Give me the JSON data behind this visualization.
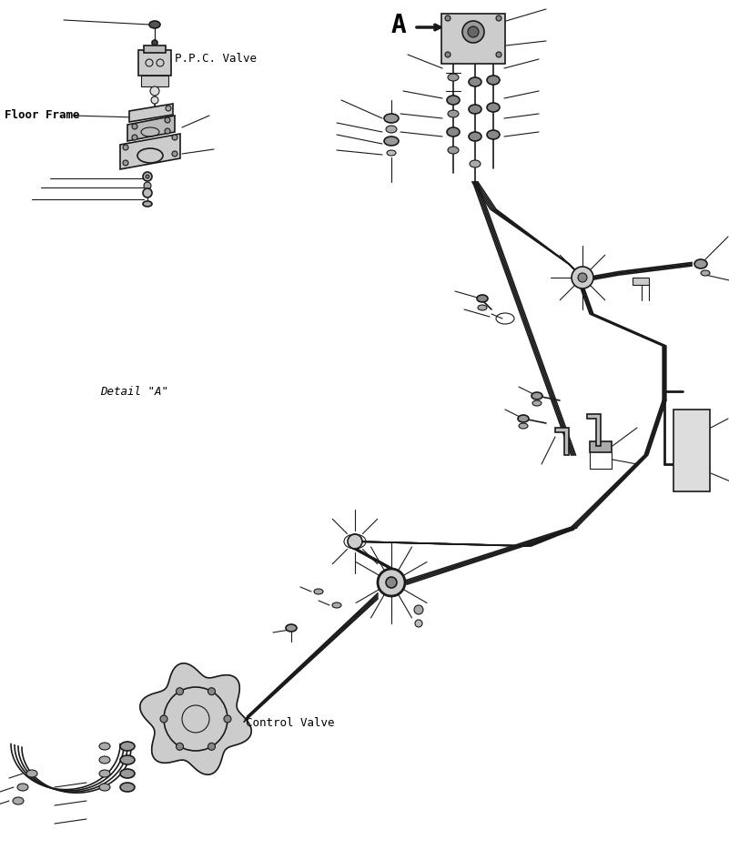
{
  "background_color": "#ffffff",
  "line_color": "#1a1a1a",
  "text_color": "#000000",
  "title_ppc": "P.P.C. Valve",
  "title_floor": "Floor Frame",
  "title_detail": "Detail \"A\"",
  "title_control": "Control Valve",
  "label_A": "A",
  "fig_width": 8.01,
  "fig_height": 9.34,
  "dpi": 100
}
